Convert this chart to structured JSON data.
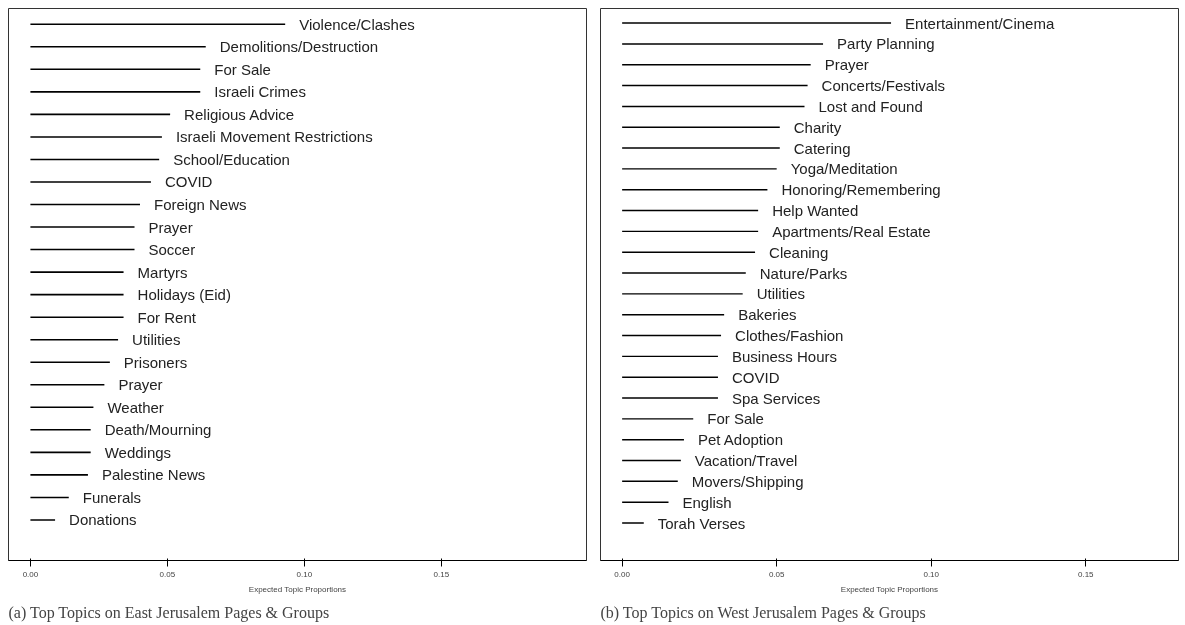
{
  "chart_data": [
    {
      "type": "bar",
      "orientation": "horizontal",
      "title": "(a) Top Topics on East Jerusalem Pages & Groups",
      "xlabel": "Expected Topic Proportions",
      "categories": [
        "Violence/Clashes",
        "Demolitions/Destruction",
        "For Sale",
        "Israeli Crimes",
        "Religious Advice",
        "Israeli Movement Restrictions",
        "School/Education",
        "COVID",
        "Foreign News",
        "Prayer",
        "Soccer",
        "Martyrs",
        "Holidays (Eid)",
        "For Rent",
        "Utilities",
        "Prisoners",
        "Prayer",
        "Weather",
        "Death/Mourning",
        "Weddings",
        "Palestine News",
        "Funerals",
        "Donations"
      ],
      "values": [
        0.093,
        0.064,
        0.062,
        0.062,
        0.051,
        0.048,
        0.047,
        0.044,
        0.04,
        0.038,
        0.038,
        0.034,
        0.034,
        0.034,
        0.032,
        0.029,
        0.027,
        0.023,
        0.022,
        0.022,
        0.021,
        0.014,
        0.009
      ],
      "color": "#000000",
      "xlim": [
        -0.008,
        0.203
      ],
      "xticks": [
        {
          "value": 0,
          "label": "0.00"
        },
        {
          "value": 0.05,
          "label": "0.05"
        },
        {
          "value": 0.1,
          "label": "0.10"
        },
        {
          "value": 0.15,
          "label": "0.15"
        }
      ],
      "tick_labels": "x",
      "grid": false
    },
    {
      "type": "bar",
      "orientation": "horizontal",
      "title": "(b) Top Topics on West Jerusalem Pages & Groups",
      "xlabel": "Expected Topic Proportions",
      "categories": [
        "Entertainment/Cinema",
        "Party Planning",
        "Prayer",
        "Concerts/Festivals",
        "Lost and Found",
        "Charity",
        "Catering",
        "Yoga/Meditation",
        "Honoring/Remembering",
        "Help Wanted",
        "Apartments/Real Estate",
        "Cleaning",
        "Nature/Parks",
        "Utilities",
        "Bakeries",
        "Clothes/Fashion",
        "Business Hours",
        "COVID",
        "Spa Services",
        "For Sale",
        "Pet Adoption",
        "Vacation/Travel",
        "Movers/Shipping",
        "English",
        "Torah Verses"
      ],
      "values": [
        0.087,
        0.065,
        0.061,
        0.06,
        0.059,
        0.051,
        0.051,
        0.05,
        0.047,
        0.044,
        0.044,
        0.043,
        0.04,
        0.039,
        0.033,
        0.032,
        0.031,
        0.031,
        0.031,
        0.023,
        0.02,
        0.019,
        0.018,
        0.015,
        0.007
      ],
      "color": "#000000",
      "xlim": [
        -0.007,
        0.18
      ],
      "xticks": [
        {
          "value": 0,
          "label": "0.00"
        },
        {
          "value": 0.05,
          "label": "0.05"
        },
        {
          "value": 0.1,
          "label": "0.10"
        },
        {
          "value": 0.15,
          "label": "0.15"
        }
      ],
      "tick_labels": "x",
      "grid": false
    }
  ]
}
